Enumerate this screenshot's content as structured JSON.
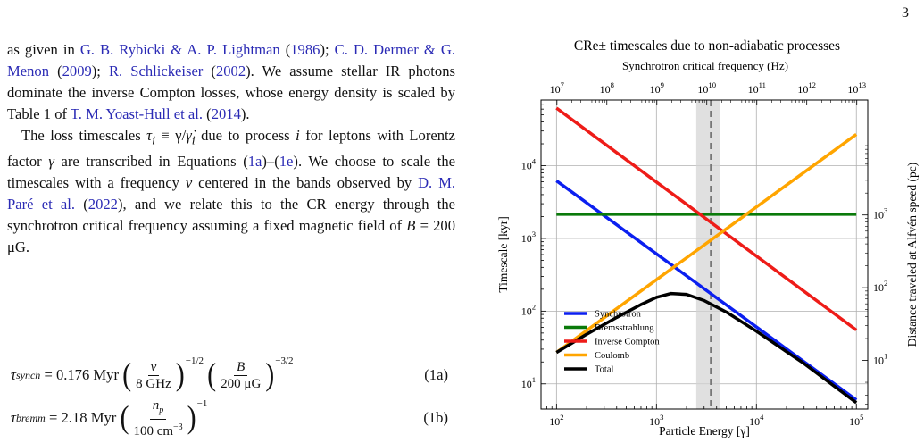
{
  "page_number": "3",
  "paragraph1": {
    "t1": "as given in ",
    "c1": "G. B. Rybicki & A. P. Lightman",
    "c1y": "1986",
    "c2": "C. D. Dermer & G. Menon",
    "c2y": "2009",
    "c3": "R. Schlickeiser",
    "c3y": "2002",
    "t2": ". We assume stellar IR photons dominate the inverse Compton losses, whose energy density is scaled by Table 1 of ",
    "c4": "T. M. Yoast-Hull et al.",
    "c4y": "2014",
    "t3": "."
  },
  "paragraph2": {
    "t1": "The loss timescales ",
    "math1": "τ",
    "sub1": "i",
    "t1b": " ≡ γ/",
    "math2": "γ̇",
    "sub2": "i",
    "t2": " due to process ",
    "math3": "i",
    "t3": " for leptons with Lorentz factor ",
    "math4": "γ",
    "t4": " are transcribed in Equations ",
    "ref1": "1a",
    "ref2": "1e",
    "t5": ". We choose to scale the timescales with a frequency ",
    "math5": "ν",
    "t6": " centered in the bands observed by ",
    "c5": "D. M. Paré et al.",
    "c5y": "2022",
    "t7": ", and we relate this to the CR energy through the synchrotron critical frequency assuming a fixed magnetic field of ",
    "math6": "B",
    "t8": " = 200 μG."
  },
  "equations": [
    {
      "lhs": "τ",
      "sub": "synch",
      "coef": "= 0.176 Myr",
      "f1n": "ν",
      "f1d": "8 GHz",
      "e1": "−1/2",
      "f2n": "B",
      "f2d": "200 μG",
      "e2": "−3/2",
      "num": "(1a)"
    },
    {
      "lhs": "τ",
      "sub": "bremm",
      "coef": "= 2.18 Myr",
      "f1n": "n",
      "f1nsub": "p",
      "f1d": "100 cm",
      "f1dsup": "−3",
      "e1": "−1",
      "num": "(1b)"
    }
  ],
  "chart_data": {
    "type": "line",
    "title": "CRe± timescales due to non-adiabatic processes",
    "xlabel": "Particle Energy [γ]",
    "ylabel": "Timescale [kyr]",
    "xscale": "log",
    "yscale": "log",
    "xlim": [
      70,
      130000
    ],
    "ylim": [
      4.5,
      80000
    ],
    "x_ticks": [
      {
        "v": 100,
        "b": "10",
        "e": "2"
      },
      {
        "v": 1000,
        "b": "10",
        "e": "3"
      },
      {
        "v": 10000,
        "b": "10",
        "e": "4"
      },
      {
        "v": 100000,
        "b": "10",
        "e": "5"
      }
    ],
    "y_ticks": [
      {
        "v": 10,
        "b": "10",
        "e": "1"
      },
      {
        "v": 100,
        "b": "10",
        "e": "2"
      },
      {
        "v": 1000,
        "b": "10",
        "e": "3"
      },
      {
        "v": 10000,
        "b": "10",
        "e": "4"
      }
    ],
    "top_axis": {
      "label": "Synchrotron critical frequency (Hz)",
      "ticks": [
        {
          "gamma": 101,
          "b": "10",
          "e": "7"
        },
        {
          "gamma": 319,
          "b": "10",
          "e": "8"
        },
        {
          "gamma": 1010,
          "b": "10",
          "e": "9"
        },
        {
          "gamma": 3190,
          "b": "10",
          "e": "10"
        },
        {
          "gamma": 10100,
          "b": "10",
          "e": "11"
        },
        {
          "gamma": 31900,
          "b": "10",
          "e": "12"
        },
        {
          "gamma": 101000,
          "b": "10",
          "e": "13"
        }
      ]
    },
    "right_axis": {
      "label": "Distance traveled at Alfvén speed (pc)",
      "ticks": [
        {
          "y": 21,
          "b": "10",
          "e": "1"
        },
        {
          "y": 210,
          "b": "10",
          "e": "2"
        },
        {
          "y": 2100,
          "b": "10",
          "e": "3"
        }
      ]
    },
    "shaded_band": {
      "x": [
        2500,
        4300
      ]
    },
    "vertical_line": {
      "x": 3500
    },
    "grid": true,
    "legend_position": "lower-left",
    "series": [
      {
        "name": "Synchrotron",
        "color": "#0b1ff0",
        "x": [
          100,
          100000
        ],
        "y": [
          6200,
          6.0
        ]
      },
      {
        "name": "Bremsstrahlung",
        "color": "#0a7a0a",
        "x": [
          100,
          100000
        ],
        "y": [
          2150,
          2150
        ]
      },
      {
        "name": "Inverse Compton",
        "color": "#ee1c18",
        "x": [
          100,
          100000
        ],
        "y": [
          62000,
          55
        ]
      },
      {
        "name": "Coulomb",
        "color": "#ffa500",
        "x": [
          100,
          100000
        ],
        "y": [
          27,
          27000
        ]
      },
      {
        "name": "Total",
        "color": "#000000",
        "x": [
          100,
          200,
          400,
          700,
          1000,
          1400,
          2000,
          3000,
          5000,
          10000,
          30000,
          100000
        ],
        "y": [
          27,
          48,
          82,
          123,
          155,
          175,
          170,
          140,
          97,
          53,
          19,
          5.5
        ]
      }
    ]
  }
}
